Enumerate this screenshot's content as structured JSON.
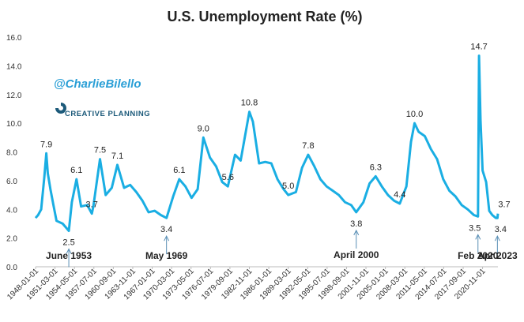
{
  "chart_data": {
    "type": "line",
    "title": "U.S. Unemployment Rate (%)",
    "watermark": "@CharlieBilello",
    "brand": "CREATIVE PLANNING",
    "color": "#1aaee3",
    "x": [
      "1948-01-01",
      "1948-06-01",
      "1948-12-01",
      "1949-06-01",
      "1949-10-01",
      "1950-01-01",
      "1950-06-01",
      "1950-12-01",
      "1951-06-01",
      "1952-06-01",
      "1953-06-01",
      "1953-12-01",
      "1954-09-01",
      "1955-06-01",
      "1956-06-01",
      "1957-03-01",
      "1957-06-01",
      "1958-07-01",
      "1959-06-01",
      "1960-06-01",
      "1961-05-01",
      "1962-06-01",
      "1963-06-01",
      "1964-06-01",
      "1965-06-01",
      "1966-06-01",
      "1967-06-01",
      "1968-06-01",
      "1969-05-01",
      "1970-06-01",
      "1971-06-01",
      "1972-06-01",
      "1973-06-01",
      "1974-06-01",
      "1975-05-01",
      "1976-06-01",
      "1977-06-01",
      "1978-06-01",
      "1979-05-01",
      "1980-07-01",
      "1981-06-01",
      "1982-11-01",
      "1983-06-01",
      "1984-06-01",
      "1985-06-01",
      "1986-06-01",
      "1987-06-01",
      "1988-06-01",
      "1989-03-01",
      "1990-06-01",
      "1991-06-01",
      "1992-06-01",
      "1993-06-01",
      "1994-06-01",
      "1995-06-01",
      "1996-06-01",
      "1997-06-01",
      "1998-06-01",
      "1999-06-01",
      "2000-04-01",
      "2001-06-01",
      "2002-06-01",
      "2003-06-01",
      "2004-06-01",
      "2005-06-01",
      "2006-06-01",
      "2007-05-01",
      "2008-06-01",
      "2009-03-01",
      "2009-10-01",
      "2010-06-01",
      "2011-06-01",
      "2012-06-01",
      "2013-06-01",
      "2014-06-01",
      "2015-06-01",
      "2016-06-01",
      "2017-06-01",
      "2018-06-01",
      "2019-06-01",
      "2020-02-01",
      "2020-04-01",
      "2020-07-01",
      "2020-11-01",
      "2021-06-01",
      "2021-12-01",
      "2022-06-01",
      "2023-01-01",
      "2023-04-01",
      "2023-05-01"
    ],
    "values": [
      3.4,
      3.6,
      4.0,
      6.2,
      7.9,
      6.5,
      5.4,
      4.3,
      3.2,
      3.0,
      2.5,
      4.5,
      6.1,
      4.2,
      4.3,
      3.7,
      4.2,
      7.5,
      5.0,
      5.5,
      7.1,
      5.5,
      5.7,
      5.2,
      4.6,
      3.8,
      3.9,
      3.6,
      3.4,
      4.9,
      6.1,
      5.6,
      4.8,
      5.4,
      9.0,
      7.6,
      7.0,
      5.9,
      5.6,
      7.8,
      7.4,
      10.8,
      10.1,
      7.2,
      7.3,
      7.2,
      6.1,
      5.4,
      5.0,
      5.2,
      6.9,
      7.8,
      7.0,
      6.1,
      5.6,
      5.3,
      5.0,
      4.5,
      4.3,
      3.8,
      4.5,
      5.8,
      6.3,
      5.6,
      5.0,
      4.6,
      4.4,
      5.6,
      8.7,
      10.0,
      9.4,
      9.1,
      8.2,
      7.5,
      6.1,
      5.3,
      4.9,
      4.3,
      4.0,
      3.6,
      3.5,
      14.7,
      10.2,
      6.7,
      5.9,
      3.9,
      3.6,
      3.4,
      3.4,
      3.7
    ],
    "annotations": [
      {
        "x": "1949-10-01",
        "value": 7.9,
        "label": "7.9"
      },
      {
        "x": "1953-06-01",
        "value": 2.5,
        "label": "2.5",
        "callout": "June 1953"
      },
      {
        "x": "1954-09-01",
        "value": 6.1,
        "label": "6.1"
      },
      {
        "x": "1957-03-01",
        "value": 3.7,
        "label": "3.7"
      },
      {
        "x": "1958-07-01",
        "value": 7.5,
        "label": "7.5"
      },
      {
        "x": "1961-05-01",
        "value": 7.1,
        "label": "7.1"
      },
      {
        "x": "1969-05-01",
        "value": 3.4,
        "label": "3.4",
        "callout": "May 1969"
      },
      {
        "x": "1971-06-01",
        "value": 6.1,
        "label": "6.1"
      },
      {
        "x": "1975-05-01",
        "value": 9.0,
        "label": "9.0"
      },
      {
        "x": "1979-05-01",
        "value": 5.6,
        "label": "5.6"
      },
      {
        "x": "1982-11-01",
        "value": 10.8,
        "label": "10.8"
      },
      {
        "x": "1989-03-01",
        "value": 5.0,
        "label": "5.0"
      },
      {
        "x": "1992-06-01",
        "value": 7.8,
        "label": "7.8"
      },
      {
        "x": "2000-04-01",
        "value": 3.8,
        "label": "3.8",
        "callout": "April 2000"
      },
      {
        "x": "2003-06-01",
        "value": 6.3,
        "label": "6.3"
      },
      {
        "x": "2007-05-01",
        "value": 4.4,
        "label": "4.4"
      },
      {
        "x": "2009-10-01",
        "value": 10.0,
        "label": "10.0"
      },
      {
        "x": "2020-04-01",
        "value": 14.7,
        "label": "14.7"
      },
      {
        "x": "2020-02-01",
        "value": 3.5,
        "label": "3.5",
        "callout": "Feb 2020"
      },
      {
        "x": "2023-04-01",
        "value": 3.4,
        "label": "3.4",
        "callout": "Apr 2023"
      },
      {
        "x": "2023-05-01",
        "value": 3.7,
        "label": "3.7"
      }
    ],
    "ylim": [
      0,
      16
    ],
    "yticks": [
      {
        "value": 0,
        "label": "0.0"
      },
      {
        "value": 2,
        "label": "2.0"
      },
      {
        "value": 4,
        "label": "4.0"
      },
      {
        "value": 6,
        "label": "6.0"
      },
      {
        "value": 8,
        "label": "8.0"
      },
      {
        "value": 10,
        "label": "10.0"
      },
      {
        "value": 12,
        "label": "12.0"
      },
      {
        "value": 14,
        "label": "14.0"
      },
      {
        "value": 16,
        "label": "16.0"
      }
    ],
    "xticks": [
      "1948-01-01",
      "1951-03-01",
      "1954-05-01",
      "1957-07-01",
      "1960-09-01",
      "1963-11-01",
      "1967-01-01",
      "1970-03-01",
      "1973-05-01",
      "1976-07-01",
      "1979-09-01",
      "1982-11-01",
      "1986-01-01",
      "1989-03-01",
      "1992-05-01",
      "1995-07-01",
      "1998-09-01",
      "2001-11-01",
      "2005-01-01",
      "2008-03-01",
      "2011-05-01",
      "2014-07-01",
      "2017-09-01",
      "2020-11-01"
    ],
    "grid": false
  }
}
